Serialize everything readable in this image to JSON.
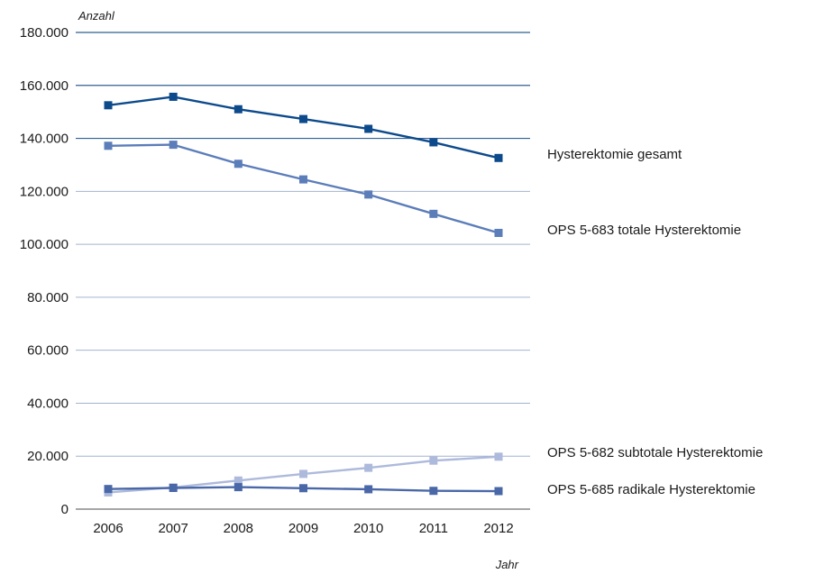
{
  "chart_data": {
    "type": "line",
    "title": "",
    "ylabel": "Anzahl",
    "xlabel": "Jahr",
    "ylim": [
      0,
      180000
    ],
    "yticks": [
      0,
      20000,
      40000,
      60000,
      80000,
      100000,
      120000,
      140000,
      160000,
      180000
    ],
    "ytick_labels": [
      "0",
      "20.000",
      "40.000",
      "60.000",
      "80.000",
      "100.000",
      "120.000",
      "140.000",
      "160.000",
      "180.000"
    ],
    "categories": [
      "2006",
      "2007",
      "2008",
      "2009",
      "2010",
      "2011",
      "2012"
    ],
    "grid": true,
    "legend": "direct labels at right end of lines",
    "series": [
      {
        "name": "Hysterektomie gesamt",
        "color": "#0d4a8c",
        "values": [
          152500,
          155700,
          151000,
          147300,
          143600,
          138500,
          132600
        ]
      },
      {
        "name": "OPS 5-683 totale Hysterektomie",
        "color": "#5b7db9",
        "values": [
          137200,
          137600,
          130400,
          124500,
          118800,
          111500,
          104300
        ]
      },
      {
        "name": "OPS 5-682 subtotale Hysterektomie",
        "color": "#aebadc",
        "values": [
          6300,
          8200,
          10800,
          13300,
          15600,
          18300,
          19800
        ]
      },
      {
        "name": "OPS 5-685 radikale Hysterektomie",
        "color": "#4a68a8",
        "values": [
          7600,
          8000,
          8300,
          7900,
          7500,
          6900,
          6800
        ]
      }
    ]
  }
}
